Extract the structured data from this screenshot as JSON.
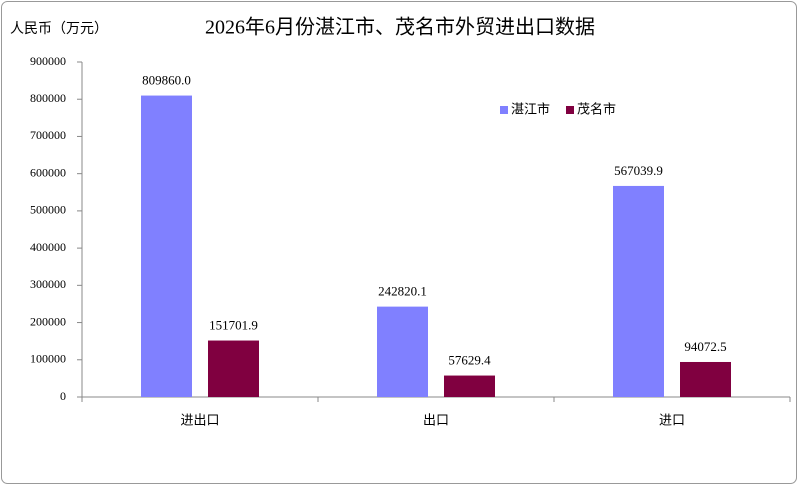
{
  "chart_data": {
    "type": "bar",
    "title": "2026年6月份湛江市、茂名市外贸进出口数据",
    "y_label": "人民币（万元）",
    "categories": [
      "进出口",
      "出口",
      "进口"
    ],
    "series": [
      {
        "name": "湛江市",
        "color": "#8080ff",
        "values": [
          809860.0,
          242820.1,
          567039.9
        ],
        "value_labels": [
          "809860.0",
          "242820.1",
          "567039.9"
        ]
      },
      {
        "name": "茂名市",
        "color": "#800040",
        "values": [
          151701.9,
          57629.4,
          94072.5
        ],
        "value_labels": [
          "151701.9",
          "57629.4",
          "94072.5"
        ]
      }
    ],
    "ylim": [
      0,
      900000
    ],
    "yticks": [
      0,
      100000,
      200000,
      300000,
      400000,
      500000,
      600000,
      700000,
      800000,
      900000
    ],
    "grid": false,
    "legend": "top-right"
  }
}
